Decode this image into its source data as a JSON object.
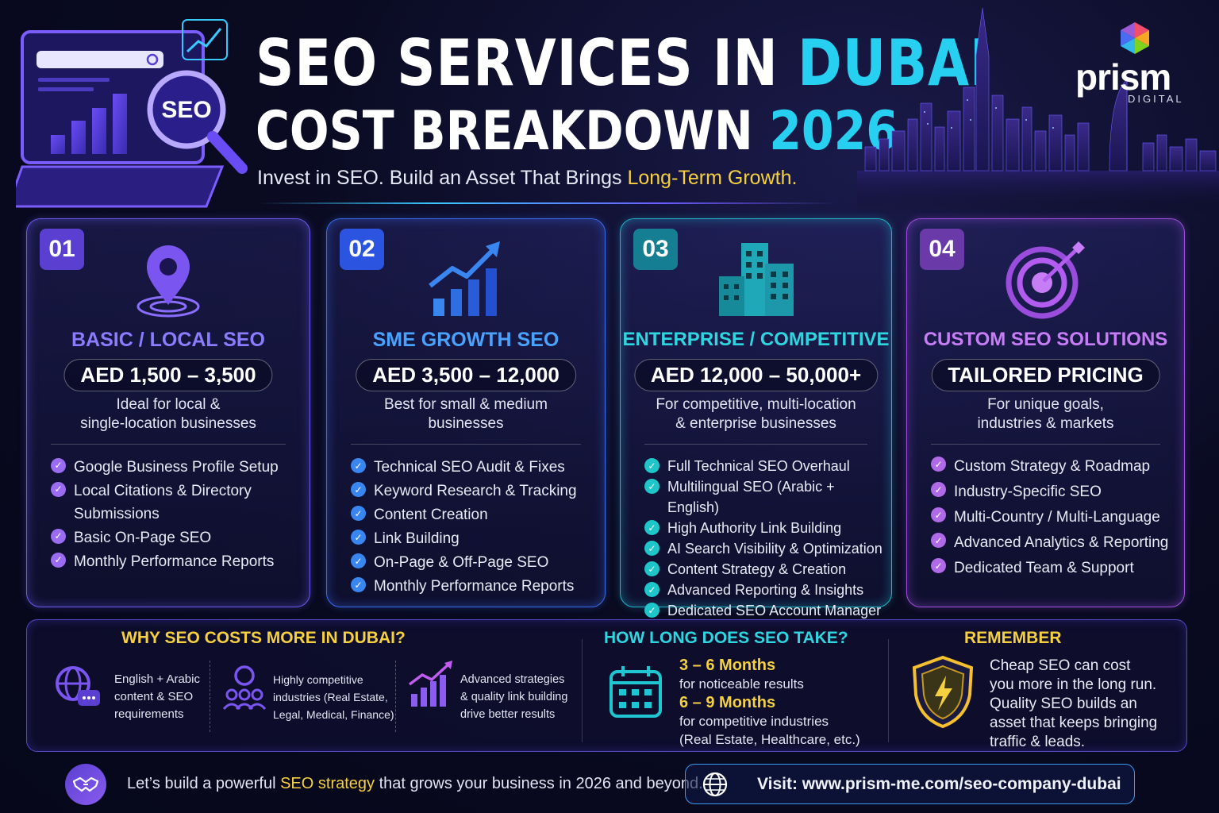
{
  "header": {
    "title_line1_a": "SEO SERVICES IN ",
    "title_line1_b": "DUBAI",
    "title_line2_a": "COST BREAKDOWN ",
    "title_line2_b": "2026",
    "subtitle_a": "Invest in SEO. Build an Asset That Brings ",
    "subtitle_b": "Long-Term Growth.",
    "hero_badge": "SEO"
  },
  "brand": {
    "name": "prism",
    "tagline": "DIGITAL"
  },
  "colors": {
    "accent_cyan": "#27d0f0",
    "accent_yellow": "#f5d040",
    "card1": "#6b5cf0",
    "card2": "#3a6cf0",
    "card3": "#22b5c8",
    "card4": "#a050e0"
  },
  "cards": [
    {
      "number": "01",
      "icon": "location-pin-icon",
      "title": "BASIC / LOCAL SEO",
      "price": "AED 1,500 – 3,500",
      "desc_line1": "Ideal for local &",
      "desc_line2": "single-location businesses",
      "features": [
        "Google Business Profile Setup",
        "Local Citations & Directory Submissions",
        "Basic On-Page SEO",
        "Monthly Performance Reports"
      ]
    },
    {
      "number": "02",
      "icon": "growth-chart-icon",
      "title": "SME GROWTH SEO",
      "price": "AED 3,500 – 12,000",
      "desc_line1": "Best for small & medium",
      "desc_line2": "businesses",
      "features": [
        "Technical SEO Audit & Fixes",
        "Keyword Research & Tracking",
        "Content Creation",
        "Link Building",
        "On-Page & Off-Page SEO",
        "Monthly Performance Reports"
      ]
    },
    {
      "number": "03",
      "icon": "buildings-icon",
      "title": "ENTERPRISE / COMPETITIVE",
      "price": "AED 12,000 – 50,000+",
      "desc_line1": "For competitive, multi-location",
      "desc_line2": "& enterprise businesses",
      "features": [
        "Full Technical SEO Overhaul",
        "Multilingual SEO (Arabic + English)",
        "High Authority Link Building",
        "AI Search Visibility & Optimization",
        "Content Strategy & Creation",
        "Advanced Reporting & Insights",
        "Dedicated SEO Account Manager"
      ]
    },
    {
      "number": "04",
      "icon": "target-icon",
      "title": "CUSTOM SEO SOLUTIONS",
      "price": "TAILORED PRICING",
      "desc_line1": "For unique goals,",
      "desc_line2": "industries & markets",
      "features": [
        "Custom Strategy & Roadmap",
        "Industry-Specific SEO",
        "Multi-Country / Multi-Language",
        "Advanced Analytics & Reporting",
        "Dedicated Team & Support"
      ]
    }
  ],
  "why": {
    "title": "WHY SEO COSTS MORE IN DUBAI?",
    "items": [
      {
        "icon": "globe-chat-icon",
        "lines": [
          "English + Arabic",
          "content & SEO",
          "requirements"
        ]
      },
      {
        "icon": "people-icon",
        "lines": [
          "Highly competitive",
          "industries (Real Estate,",
          "Legal, Medical, Finance)"
        ]
      },
      {
        "icon": "growth-bars-icon",
        "lines": [
          "Advanced strategies",
          "& quality link building",
          "drive better results"
        ]
      }
    ]
  },
  "how": {
    "title": "HOW LONG DOES SEO TAKE?",
    "range1": "3 – 6 Months",
    "range1_note": "for noticeable results",
    "range2": "6 – 9 Months",
    "range2_note": "for competitive industries",
    "range2_note2": "(Real Estate, Healthcare, etc.)"
  },
  "remember": {
    "title": "REMEMBER",
    "lines": [
      "Cheap SEO can cost",
      "you more in the long run.",
      "Quality SEO builds an",
      "asset that keeps bringing",
      "traffic & leads."
    ]
  },
  "footer": {
    "cta_a": "Let’s build a powerful ",
    "cta_b": "SEO strategy",
    "cta_c": " that grows your business in 2026 and beyond.",
    "visit": "Visit: www.prism-me.com/seo-company-dubai"
  }
}
